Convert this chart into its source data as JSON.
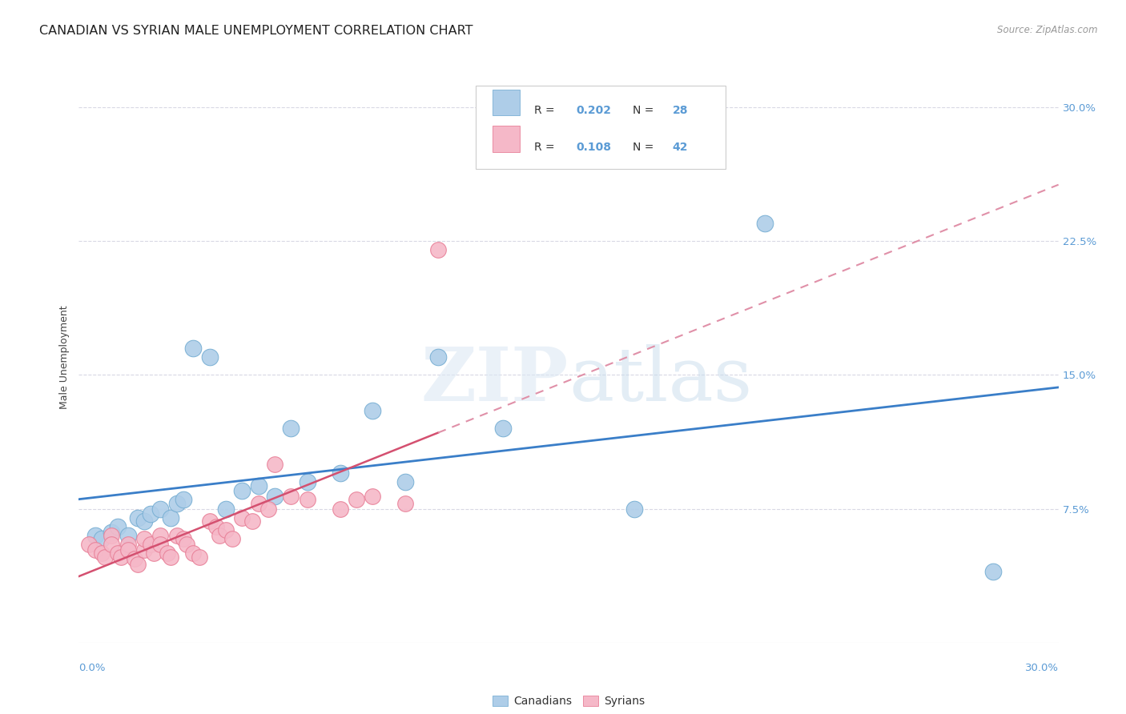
{
  "title": "CANADIAN VS SYRIAN MALE UNEMPLOYMENT CORRELATION CHART",
  "source": "Source: ZipAtlas.com",
  "ylabel": "Male Unemployment",
  "xmin": 0.0,
  "xmax": 0.3,
  "ymin": 0.0,
  "ymax": 0.32,
  "canadian_color": "#aecde8",
  "canadian_edge": "#7ab0d4",
  "syrian_color": "#f5b8c8",
  "syrian_edge": "#e88098",
  "trend_canadian_color": "#3a7ec8",
  "trend_syrian_color_solid": "#d45070",
  "trend_syrian_color_dash": "#e090a8",
  "background_color": "#ffffff",
  "grid_color": "#d8d8e4",
  "axis_label_color": "#5b9bd5",
  "title_fontsize": 11.5,
  "label_fontsize": 9,
  "tick_fontsize": 9.5,
  "canadians_x": [
    0.005,
    0.007,
    0.01,
    0.012,
    0.015,
    0.018,
    0.02,
    0.022,
    0.025,
    0.028,
    0.03,
    0.032,
    0.035,
    0.04,
    0.045,
    0.05,
    0.055,
    0.06,
    0.065,
    0.07,
    0.08,
    0.09,
    0.1,
    0.11,
    0.13,
    0.17,
    0.21,
    0.28
  ],
  "canadians_y": [
    0.06,
    0.058,
    0.062,
    0.065,
    0.06,
    0.07,
    0.068,
    0.072,
    0.075,
    0.07,
    0.078,
    0.08,
    0.165,
    0.16,
    0.075,
    0.085,
    0.088,
    0.082,
    0.12,
    0.09,
    0.095,
    0.13,
    0.09,
    0.16,
    0.12,
    0.075,
    0.235,
    0.04
  ],
  "syrians_x": [
    0.003,
    0.005,
    0.007,
    0.008,
    0.01,
    0.01,
    0.012,
    0.013,
    0.015,
    0.015,
    0.017,
    0.018,
    0.02,
    0.02,
    0.022,
    0.023,
    0.025,
    0.025,
    0.027,
    0.028,
    0.03,
    0.032,
    0.033,
    0.035,
    0.037,
    0.04,
    0.042,
    0.043,
    0.045,
    0.047,
    0.05,
    0.053,
    0.055,
    0.058,
    0.06,
    0.065,
    0.07,
    0.08,
    0.085,
    0.09,
    0.1,
    0.11
  ],
  "syrians_y": [
    0.055,
    0.052,
    0.05,
    0.048,
    0.06,
    0.055,
    0.05,
    0.048,
    0.055,
    0.052,
    0.047,
    0.044,
    0.052,
    0.058,
    0.055,
    0.05,
    0.06,
    0.055,
    0.05,
    0.048,
    0.06,
    0.058,
    0.055,
    0.05,
    0.048,
    0.068,
    0.065,
    0.06,
    0.063,
    0.058,
    0.07,
    0.068,
    0.078,
    0.075,
    0.1,
    0.082,
    0.08,
    0.075,
    0.08,
    0.082,
    0.078,
    0.22
  ],
  "yticks": [
    0.075,
    0.15,
    0.225,
    0.3
  ],
  "ytick_labels": [
    "7.5%",
    "15.0%",
    "22.5%",
    "30.0%"
  ]
}
